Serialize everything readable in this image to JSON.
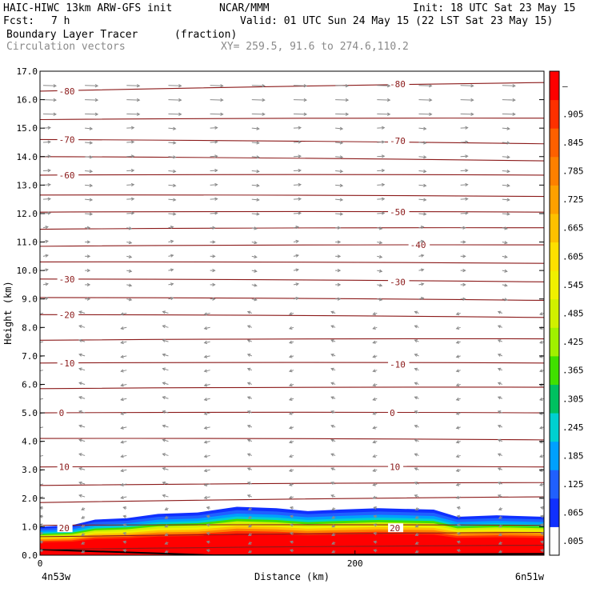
{
  "header": {
    "title_left": "HAIC-HIWC 13km ARW-GFS init",
    "org": "NCAR/MMM",
    "init": "Init: 18 UTC Sat 23 May 15",
    "fcst_label": "Fcst:",
    "fcst_value": "7 h",
    "valid": "Valid: 01 UTC Sun 24 May 15 (22 LST Sat 23 May 15)",
    "field_name": "Boundary Layer Tracer",
    "field_units": "(fraction)",
    "vector_name": "Circulation vectors",
    "xy_range": "XY= 259.5, 91.6 to 274.6,110.2"
  },
  "chart_data": {
    "type": "heatmap",
    "ylabel": "Height (km)",
    "xlabel": "Distance (km)",
    "x_left_label": "4n53w",
    "x_right_label": "6n51w",
    "xlim": [
      0,
      320
    ],
    "ylim": [
      0.0,
      17.0
    ],
    "y_ticks": [
      "0.0",
      "1.0",
      "2.0",
      "3.0",
      "4.0",
      "5.0",
      "6.0",
      "7.0",
      "8.0",
      "9.0",
      "10.0",
      "11.0",
      "12.0",
      "13.0",
      "14.0",
      "15.0",
      "16.0",
      "17.0"
    ],
    "x_ticks": [
      "0",
      "200"
    ],
    "x_tick_values": [
      0,
      200
    ],
    "colorbar": {
      "labels": [
        ".005",
        ".065",
        ".125",
        ".185",
        ".245",
        ".305",
        ".365",
        ".425",
        ".485",
        ".545",
        ".605",
        ".665",
        ".725",
        ".785",
        ".845",
        ".905",
        "–"
      ],
      "colors": [
        "#ffffff",
        "#1030ff",
        "#2060ff",
        "#00a0ff",
        "#00d0d0",
        "#00c060",
        "#40e000",
        "#a0f000",
        "#d0f000",
        "#f0f000",
        "#ffe000",
        "#ffc000",
        "#ffa000",
        "#ff8000",
        "#ff6000",
        "#ff3000",
        "#ff0000"
      ]
    },
    "tracer_top_km": [
      [
        0,
        1.0
      ],
      [
        20,
        1.05
      ],
      [
        35,
        1.25
      ],
      [
        55,
        1.3
      ],
      [
        75,
        1.45
      ],
      [
        100,
        1.5
      ],
      [
        125,
        1.7
      ],
      [
        150,
        1.65
      ],
      [
        170,
        1.55
      ],
      [
        190,
        1.6
      ],
      [
        215,
        1.65
      ],
      [
        250,
        1.6
      ],
      [
        265,
        1.35
      ],
      [
        290,
        1.4
      ],
      [
        320,
        1.35
      ]
    ],
    "isotherm_labels": [
      "-80",
      "-70",
      "-60",
      "-50",
      "-40",
      "-30",
      "-20",
      "-10",
      "0",
      "10",
      "20"
    ],
    "isotherm_label_points": [
      {
        "text": "-80",
        "x": 12,
        "y": 16.3
      },
      {
        "text": "-80",
        "x": 222,
        "y": 16.55
      },
      {
        "text": "-70",
        "x": 12,
        "y": 14.6
      },
      {
        "text": "-70",
        "x": 222,
        "y": 14.55
      },
      {
        "text": "-60",
        "x": 12,
        "y": 13.35
      },
      {
        "text": "-50",
        "x": 222,
        "y": 12.05
      },
      {
        "text": "-40",
        "x": 235,
        "y": 10.9
      },
      {
        "text": "-30",
        "x": 12,
        "y": 9.7
      },
      {
        "text": "-30",
        "x": 222,
        "y": 9.6
      },
      {
        "text": "-20",
        "x": 12,
        "y": 8.45
      },
      {
        "text": "-10",
        "x": 12,
        "y": 6.75
      },
      {
        "text": "-10",
        "x": 222,
        "y": 6.7
      },
      {
        "text": "0",
        "x": 12,
        "y": 5.0
      },
      {
        "text": "0",
        "x": 222,
        "y": 5.0
      },
      {
        "text": "10",
        "x": 12,
        "y": 3.1
      },
      {
        "text": "10",
        "x": 222,
        "y": 3.1
      },
      {
        "text": "20",
        "x": 12,
        "y": 0.95
      },
      {
        "text": "20",
        "x": 222,
        "y": 0.95
      }
    ],
    "isotherm_lines": [
      [
        0.2,
        0.35
      ],
      [
        0.65,
        0.8
      ],
      [
        1.05,
        1.05
      ],
      [
        1.85,
        2.05
      ],
      [
        2.45,
        2.55
      ],
      [
        3.1,
        3.1
      ],
      [
        4.1,
        4.05
      ],
      [
        5.0,
        5.0
      ],
      [
        5.85,
        5.9
      ],
      [
        6.75,
        6.75
      ],
      [
        7.55,
        7.6
      ],
      [
        8.45,
        8.35
      ],
      [
        9.05,
        8.95
      ],
      [
        9.7,
        9.6
      ],
      [
        10.3,
        10.25
      ],
      [
        10.85,
        10.9
      ],
      [
        11.45,
        11.5
      ],
      [
        12.05,
        12.05
      ],
      [
        12.65,
        12.6
      ],
      [
        13.35,
        13.35
      ],
      [
        14.0,
        13.85
      ],
      [
        14.6,
        14.45
      ],
      [
        15.3,
        15.35
      ],
      [
        16.3,
        16.6
      ]
    ],
    "vector_rows_km": [
      0.15,
      0.45,
      0.75,
      1.05,
      1.35,
      1.65,
      2.05,
      2.5,
      3.0,
      3.5,
      4.0,
      4.5,
      5.0,
      5.5,
      6.0,
      6.5,
      7.0,
      7.5,
      8.0,
      8.5,
      9.0,
      9.5,
      10.0,
      10.5,
      11.0,
      11.5,
      12.0,
      12.5,
      13.0,
      13.5,
      14.0,
      14.5,
      15.0,
      15.5,
      16.0,
      16.5
    ],
    "vector_columns": 13
  },
  "colors": {
    "isotherm": "#8b1a1a",
    "vector": "#8a8a8a",
    "terrain": "#000000"
  }
}
